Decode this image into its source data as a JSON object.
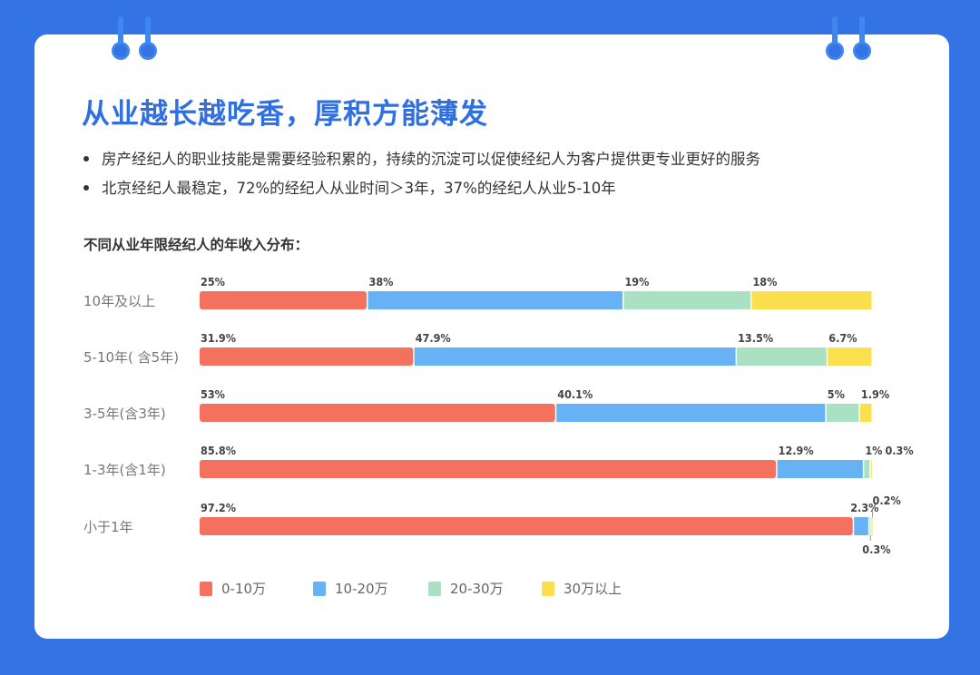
{
  "title": "从业越长越吃香，厚积方能薄发",
  "bullets": [
    "房产经纪人的职业技能是需要经验积累的，持续的沉淀可以促使经纪人为客户提供更专业更好的服务",
    "北京经纪人最稳定，72%的经纪人从业时间＞3年，37%的经纪人从业5-10年"
  ],
  "chart_data": {
    "type": "bar",
    "orientation": "horizontal-stacked-100",
    "title": "不同从业年限经纪人的年收入分布：",
    "categories": [
      "10年及以上",
      "5-10年( 含5年)",
      "3-5年(含3年)",
      "1-3年(含1年)",
      "小于1年"
    ],
    "series": [
      {
        "name": "0-10万",
        "color": "#f4715f",
        "values": [
          25,
          31.9,
          53,
          85.8,
          97.2
        ],
        "labels": [
          "25%",
          "31.9%",
          "53%",
          "85.8%",
          "97.2%"
        ]
      },
      {
        "name": "10-20万",
        "color": "#67b2f4",
        "values": [
          38,
          47.9,
          40.1,
          12.9,
          2.3
        ],
        "labels": [
          "38%",
          "47.9%",
          "40.1%",
          "12.9%",
          "2.3%"
        ]
      },
      {
        "name": "20-30万",
        "color": "#a9e1c2",
        "values": [
          19,
          13.5,
          5,
          1,
          0.3
        ],
        "labels": [
          "19%",
          "13.5%",
          "5%",
          "1%",
          "0.3%"
        ]
      },
      {
        "name": "30万以上",
        "color": "#fbdf4c",
        "values": [
          18,
          6.7,
          1.9,
          0.3,
          0.2
        ],
        "labels": [
          "18%",
          "6.7%",
          "1.9%",
          "0.3%",
          "0.2%"
        ]
      }
    ],
    "legend": "bottom",
    "grid": false
  }
}
